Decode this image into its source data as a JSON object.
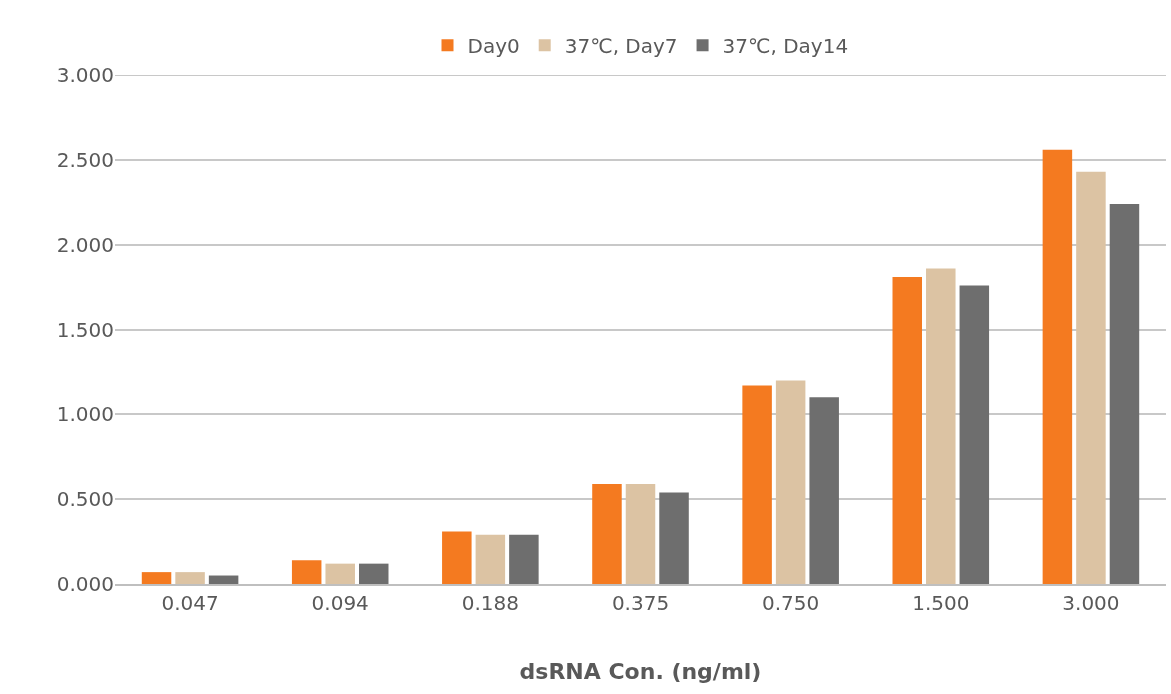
{
  "chart_data": {
    "type": "bar",
    "xlabel": "dsRNA Con. (ng/ml)",
    "categories": [
      "0.047",
      "0.094",
      "0.188",
      "0.375",
      "0.750",
      "1.500",
      "3.000"
    ],
    "series": [
      {
        "name": "Day0",
        "color": "#f47a20",
        "values": [
          0.07,
          0.14,
          0.31,
          0.59,
          1.17,
          1.81,
          2.56
        ]
      },
      {
        "name": "37℃, Day7",
        "color": "#dcc3a3",
        "values": [
          0.07,
          0.12,
          0.29,
          0.59,
          1.2,
          1.86,
          2.43
        ]
      },
      {
        "name": "37℃, Day14",
        "color": "#6e6e6e",
        "values": [
          0.05,
          0.12,
          0.29,
          0.54,
          1.1,
          1.76,
          2.24
        ]
      }
    ],
    "ylim": [
      0,
      3
    ],
    "yticks": [
      {
        "value": 0,
        "label": "0.000"
      },
      {
        "value": 0.5,
        "label": "0.500"
      },
      {
        "value": 1,
        "label": "1.000"
      },
      {
        "value": 1.5,
        "label": "1.500"
      },
      {
        "value": 2,
        "label": "2.000"
      },
      {
        "value": 2.5,
        "label": "2.500"
      },
      {
        "value": 3,
        "label": "3.000"
      }
    ],
    "grid": "y",
    "legend": "top"
  }
}
